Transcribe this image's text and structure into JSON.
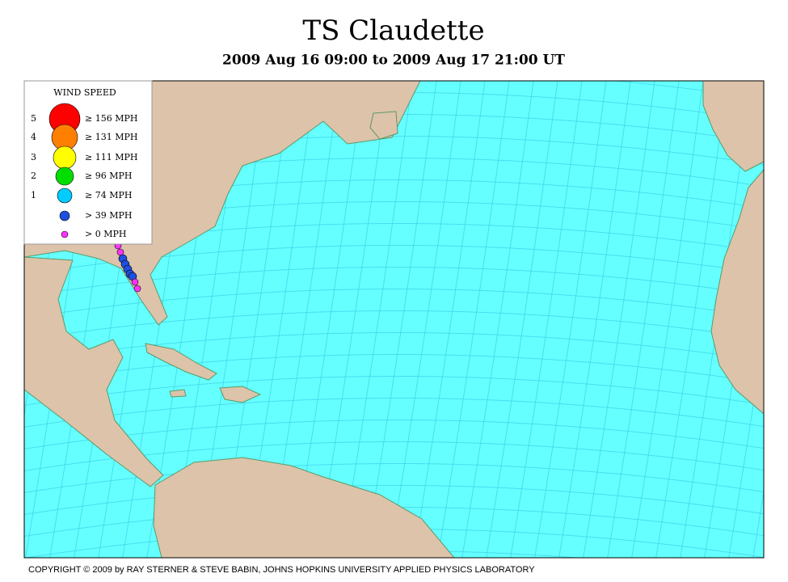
{
  "header": {
    "title": "TS Claudette",
    "subtitle": "2009 Aug 16 09:00 to 2009 Aug 17 21:00 UT"
  },
  "legend": {
    "title": "WIND SPEED",
    "items": [
      {
        "category": "5",
        "label": "≥ 156 MPH"
      },
      {
        "category": "4",
        "label": "≥ 131 MPH"
      },
      {
        "category": "3",
        "label": "≥ 111 MPH"
      },
      {
        "category": "2",
        "label": "≥ 96 MPH"
      },
      {
        "category": "1",
        "label": "≥ 74 MPH"
      },
      {
        "label": "> 39 MPH"
      },
      {
        "label": "> 0 MPH"
      }
    ]
  },
  "footer": {
    "copyright": "COPYRIGHT © 2009 by RAY STERNER & STEVE BABIN, JOHNS HOPKINS UNIVERSITY APPLIED PHYSICS LABORATORY"
  }
}
